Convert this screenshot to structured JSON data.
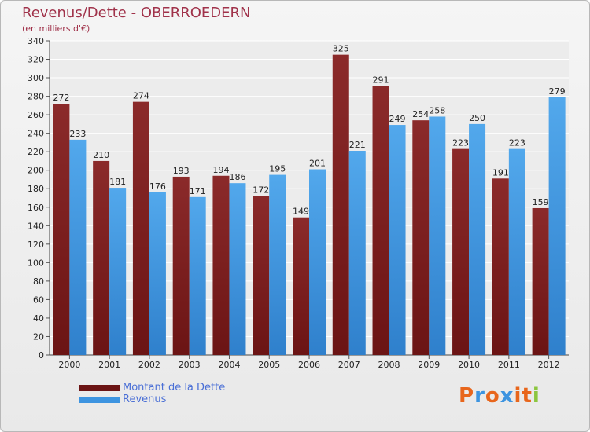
{
  "chart_data": {
    "type": "bar",
    "title": "Revenus/Dette - OBERROEDERN",
    "subtitle": "(en milliers d'€)",
    "categories": [
      "2000",
      "2001",
      "2002",
      "2003",
      "2004",
      "2005",
      "2006",
      "2007",
      "2008",
      "2009",
      "2010",
      "2011",
      "2012"
    ],
    "series": [
      {
        "name": "Montant de la Dette",
        "color": "#6b1414",
        "values": [
          272,
          210,
          274,
          193,
          194,
          172,
          149,
          325,
          291,
          254,
          223,
          191,
          159
        ]
      },
      {
        "name": "Revenus",
        "color": "#3d94e0",
        "values": [
          233,
          181,
          176,
          171,
          186,
          195,
          201,
          221,
          249,
          258,
          250,
          223,
          279
        ]
      }
    ],
    "ylim": [
      0,
      340
    ],
    "yticks": [
      0,
      20,
      40,
      60,
      80,
      100,
      120,
      140,
      160,
      180,
      200,
      220,
      240,
      260,
      280,
      300,
      320,
      340
    ],
    "grid": true,
    "legend_position": "bottom-left"
  },
  "logo": {
    "text": "Proxiti",
    "colors": [
      "#e8661c",
      "#3d94e0",
      "#e8661c",
      "#3d94e0",
      "#e8661c",
      "#e8661c",
      "#8cc63f"
    ]
  }
}
